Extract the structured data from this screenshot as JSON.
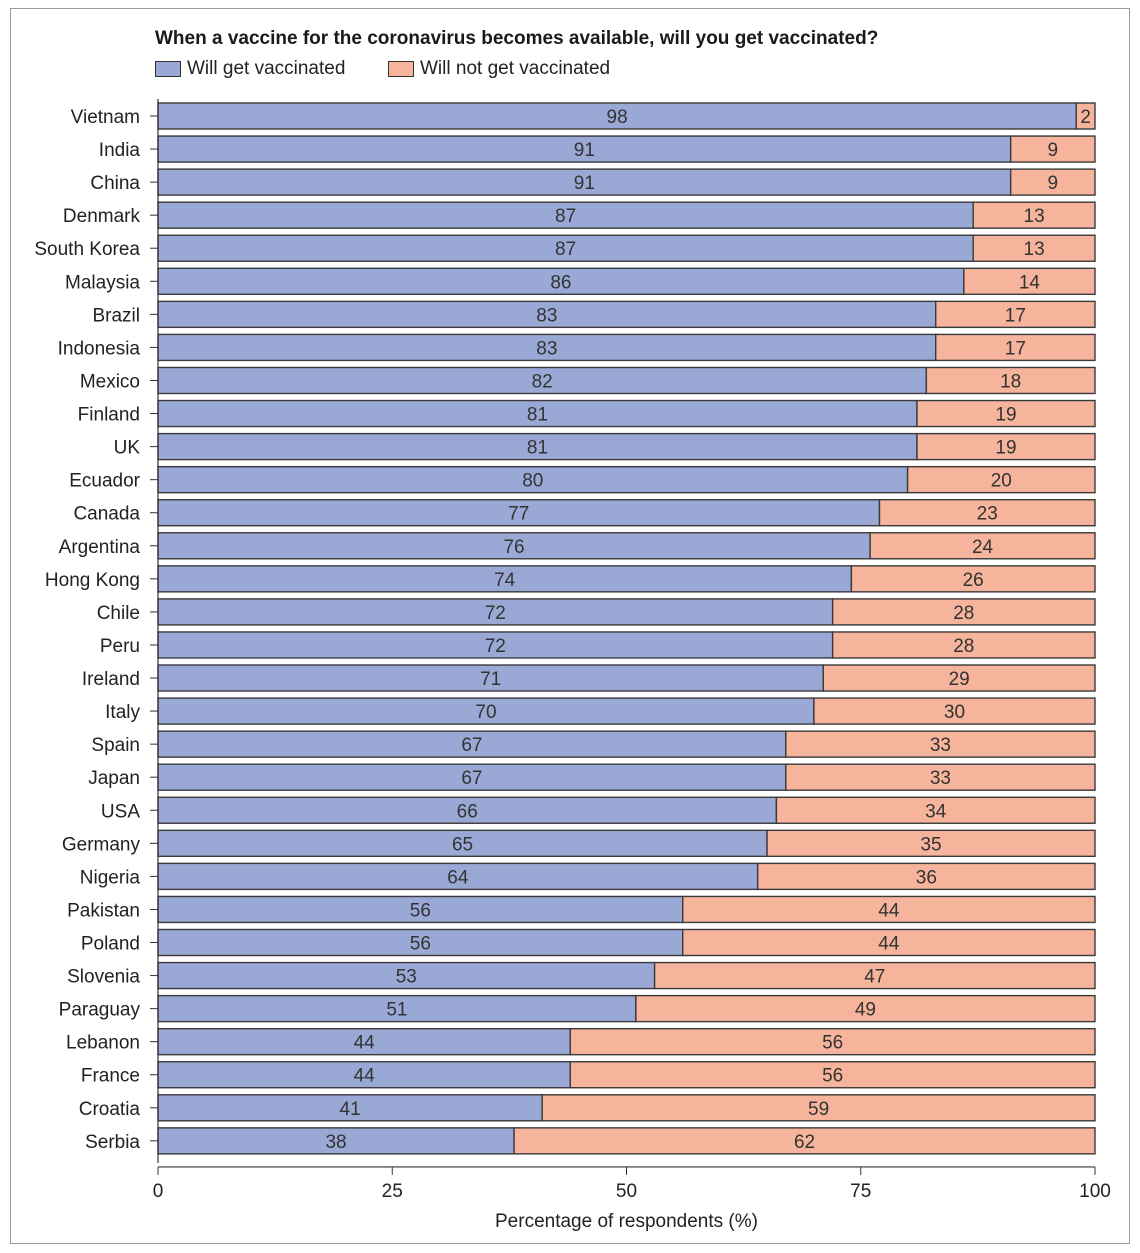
{
  "chart_data": {
    "type": "bar",
    "orientation": "horizontal",
    "stacked": true,
    "title": "When a vaccine for the coronavirus becomes available, will you get vaccinated?",
    "xlabel": "Percentage of respondents (%)",
    "ylabel": "",
    "xlim": [
      0,
      100
    ],
    "xticks": [
      "0",
      "25",
      "50",
      "75",
      "100"
    ],
    "legend_position": "top-left",
    "categories": [
      "Vietnam",
      "India",
      "China",
      "Denmark",
      "South Korea",
      "Malaysia",
      "Brazil",
      "Indonesia",
      "Mexico",
      "Finland",
      "UK",
      "Ecuador",
      "Canada",
      "Argentina",
      "Hong Kong",
      "Chile",
      "Peru",
      "Ireland",
      "Italy",
      "Spain",
      "Japan",
      "USA",
      "Germany",
      "Nigeria",
      "Pakistan",
      "Poland",
      "Slovenia",
      "Paraguay",
      "Lebanon",
      "France",
      "Croatia",
      "Serbia"
    ],
    "series": [
      {
        "name": "Will get vaccinated",
        "color": "#9aa8d6",
        "values": [
          98,
          91,
          91,
          87,
          87,
          86,
          83,
          83,
          82,
          81,
          81,
          80,
          77,
          76,
          74,
          72,
          72,
          71,
          70,
          67,
          67,
          66,
          65,
          64,
          56,
          56,
          53,
          51,
          44,
          44,
          41,
          38
        ]
      },
      {
        "name": "Will not get vaccinated",
        "color": "#f5b49b",
        "values": [
          2,
          9,
          9,
          13,
          13,
          14,
          17,
          17,
          18,
          19,
          19,
          20,
          23,
          24,
          26,
          28,
          28,
          29,
          30,
          33,
          33,
          34,
          35,
          36,
          44,
          44,
          47,
          49,
          56,
          56,
          59,
          62
        ]
      }
    ]
  }
}
